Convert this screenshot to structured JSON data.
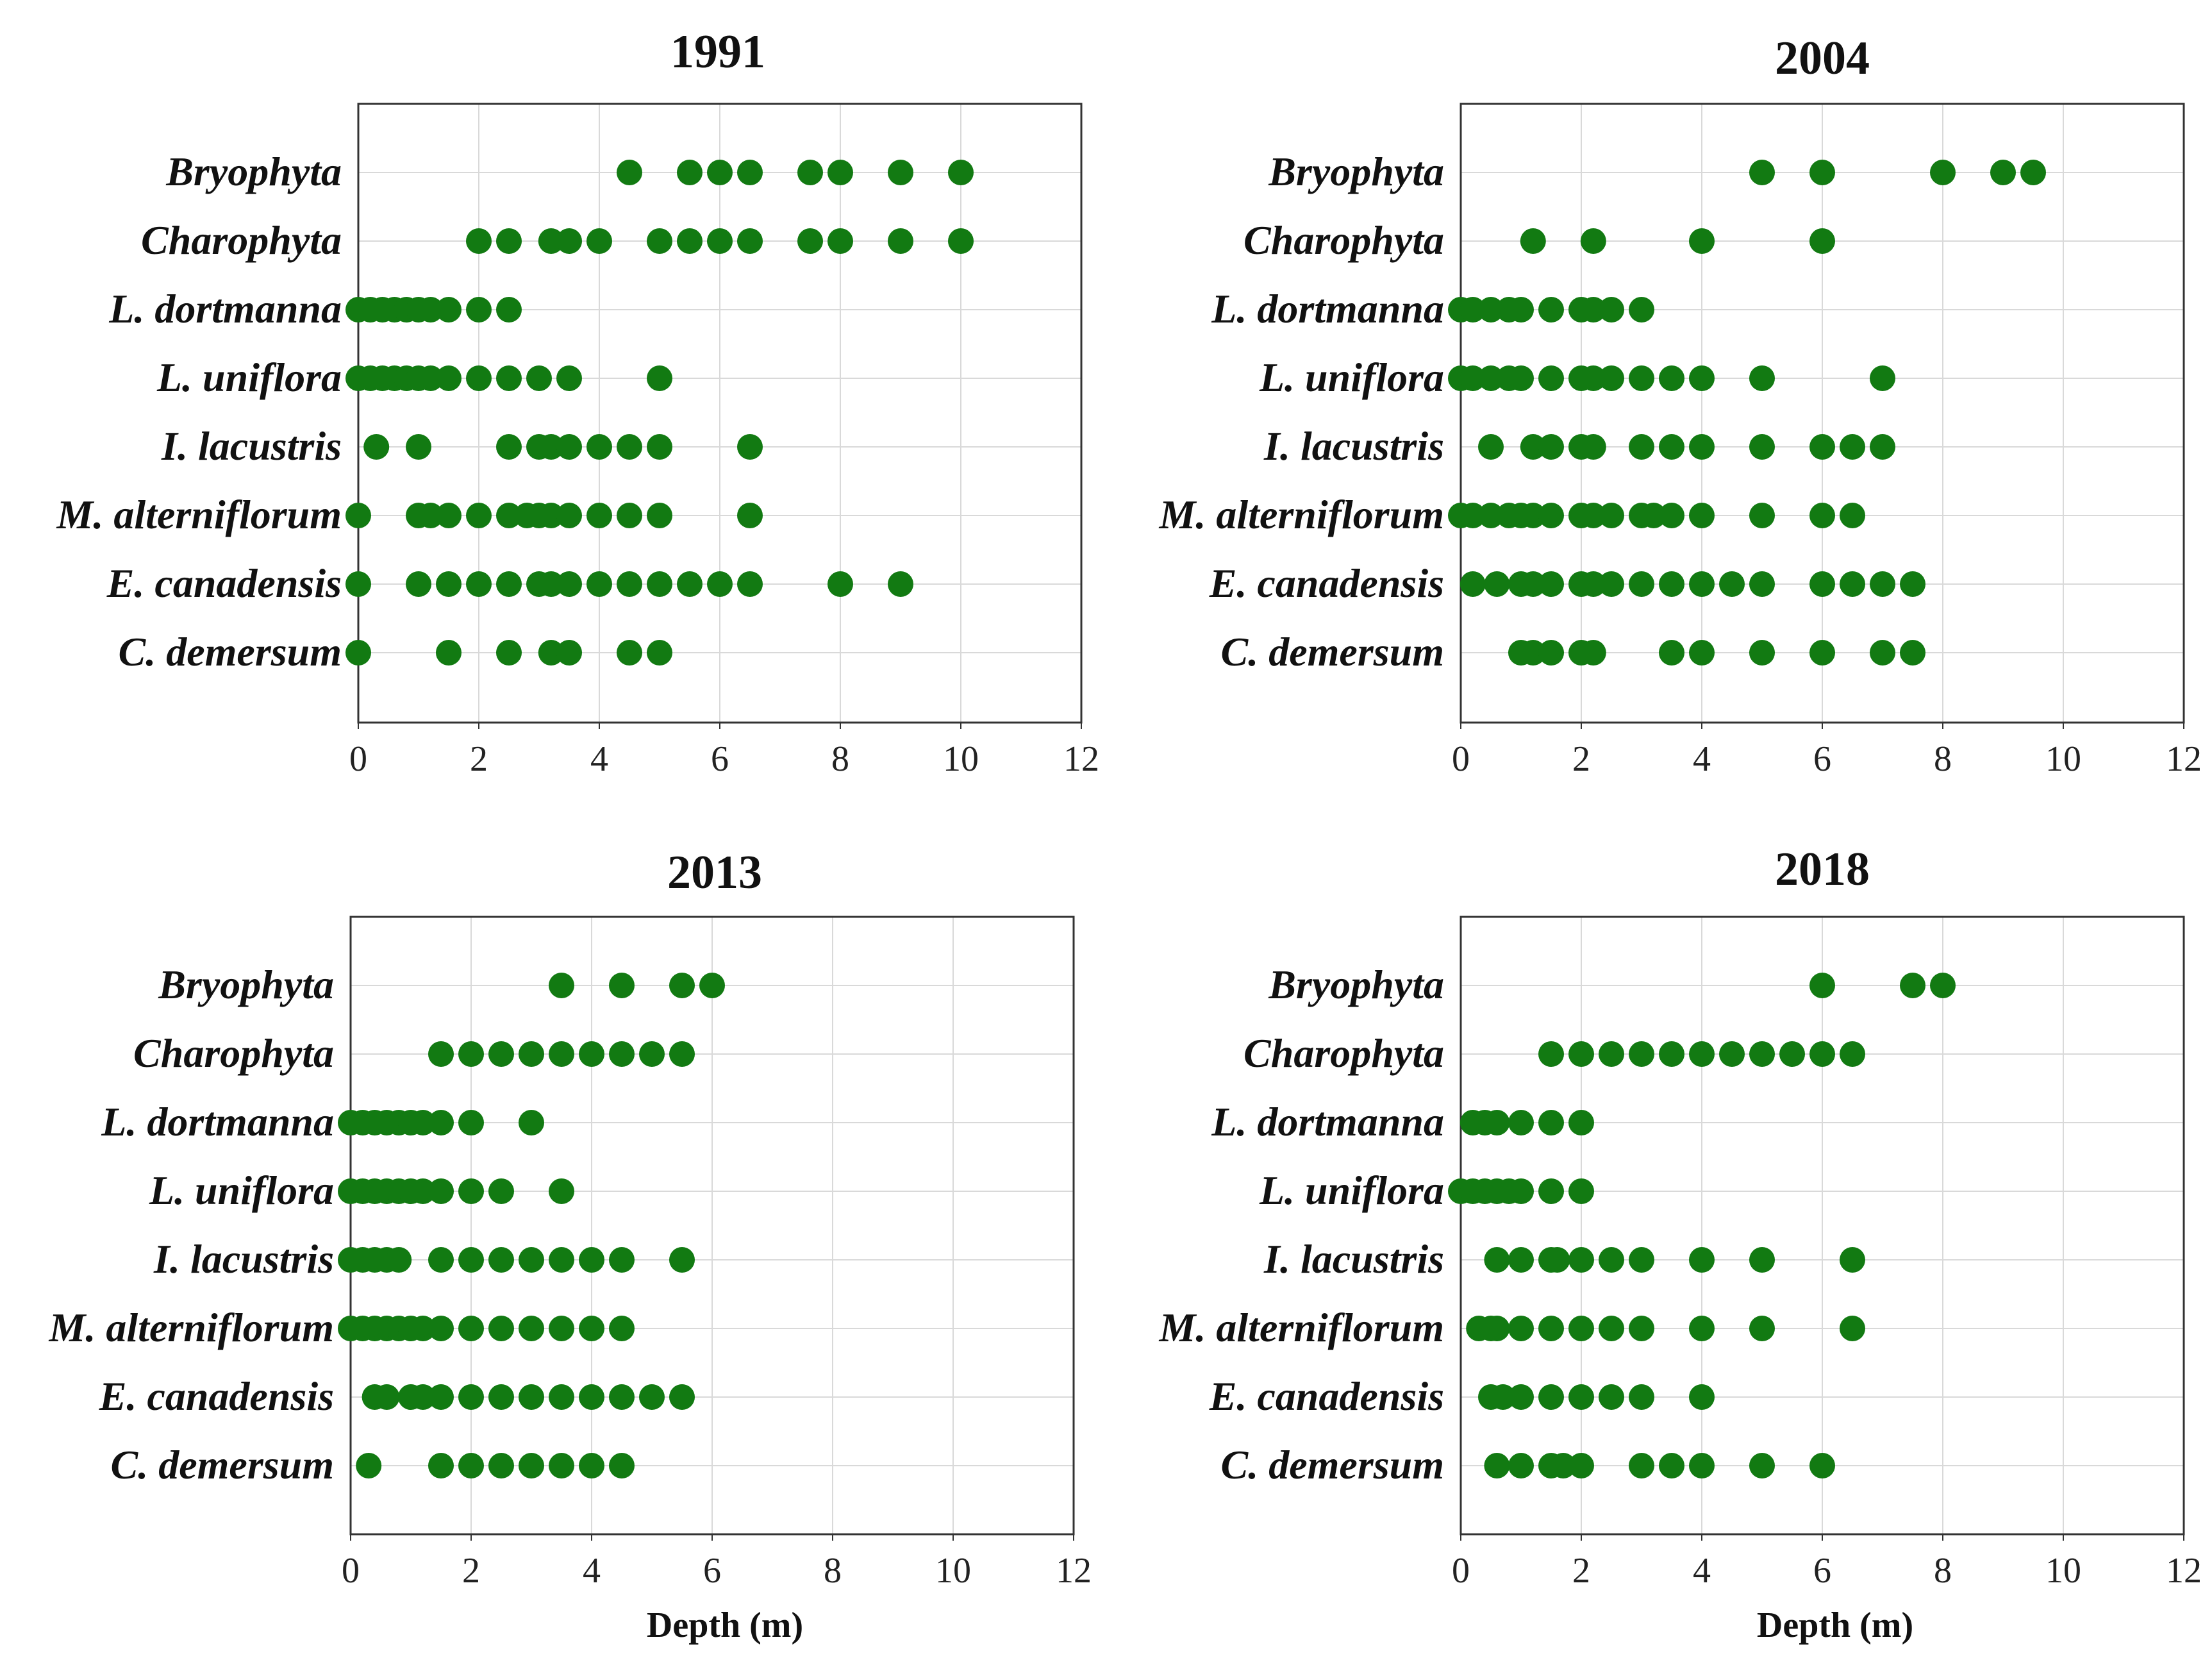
{
  "figure": {
    "colors": {
      "point": "#127a12",
      "grid": "#d9d9d9",
      "frame": "#333333"
    }
  },
  "chart_data": [
    {
      "type": "scatter",
      "title": "1991",
      "xlabel": "",
      "xlim": [
        0,
        12
      ],
      "xticks": [
        0,
        2,
        4,
        6,
        8,
        10,
        12
      ],
      "xtick_labels": [
        "0",
        "2",
        "4",
        "6",
        "8",
        "10",
        "12"
      ],
      "categories": [
        "Bryophyta",
        "Charophyta",
        "L. dortmanna",
        "L. uniflora",
        "I. lacustris",
        "M. alterniflorum",
        "E. canadensis",
        "C. demersum"
      ],
      "series": [
        {
          "name": "Bryophyta",
          "x": [
            4.5,
            5.5,
            6,
            6.5,
            7.5,
            8,
            9,
            10
          ]
        },
        {
          "name": "Charophyta",
          "x": [
            2,
            2.5,
            3.2,
            3.5,
            4,
            5,
            5.5,
            6,
            6.5,
            7.5,
            8,
            9,
            10
          ]
        },
        {
          "name": "L. dortmanna",
          "x": [
            0,
            0.2,
            0.4,
            0.6,
            0.8,
            1,
            1.2,
            1.5,
            2,
            2.5
          ]
        },
        {
          "name": "L. uniflora",
          "x": [
            0,
            0.2,
            0.4,
            0.6,
            0.8,
            1,
            1.2,
            1.5,
            2,
            2.5,
            3,
            3.5,
            5
          ]
        },
        {
          "name": "I. lacustris",
          "x": [
            0.3,
            1,
            2.5,
            3,
            3.2,
            3.5,
            4,
            4.5,
            5,
            6.5
          ]
        },
        {
          "name": "M. alterniflorum",
          "x": [
            0,
            1,
            1.2,
            1.5,
            2,
            2.5,
            2.8,
            3,
            3.2,
            3.5,
            4,
            4.5,
            5,
            6.5
          ]
        },
        {
          "name": "E. canadensis",
          "x": [
            0,
            1,
            1.5,
            2,
            2.5,
            3,
            3.2,
            3.5,
            4,
            4.5,
            5,
            5.5,
            6,
            6.5,
            8,
            9
          ]
        },
        {
          "name": "C. demersum",
          "x": [
            0,
            1.5,
            2.5,
            3.2,
            3.5,
            4.5,
            5
          ]
        }
      ]
    },
    {
      "type": "scatter",
      "title": "2004",
      "xlabel": "",
      "xlim": [
        0,
        12
      ],
      "xticks": [
        0,
        2,
        4,
        6,
        8,
        10,
        12
      ],
      "xtick_labels": [
        "0",
        "2",
        "4",
        "6",
        "8",
        "10",
        "12"
      ],
      "categories": [
        "Bryophyta",
        "Charophyta",
        "L. dortmanna",
        "L. uniflora",
        "I. lacustris",
        "M. alterniflorum",
        "E. canadensis",
        "C. demersum"
      ],
      "series": [
        {
          "name": "Bryophyta",
          "x": [
            5,
            6,
            8,
            9,
            9.5
          ]
        },
        {
          "name": "Charophyta",
          "x": [
            1.2,
            2.2,
            4,
            6
          ]
        },
        {
          "name": "L. dortmanna",
          "x": [
            0,
            0.2,
            0.5,
            0.8,
            1,
            1.5,
            2,
            2.2,
            2.5,
            3
          ]
        },
        {
          "name": "L. uniflora",
          "x": [
            0,
            0.2,
            0.5,
            0.8,
            1,
            1.5,
            2,
            2.2,
            2.5,
            3,
            3.5,
            4,
            5,
            7
          ]
        },
        {
          "name": "I. lacustris",
          "x": [
            0.5,
            1.2,
            1.5,
            2,
            2.2,
            3,
            3.5,
            4,
            5,
            6,
            6.5,
            7
          ]
        },
        {
          "name": "M. alterniflorum",
          "x": [
            0,
            0.2,
            0.5,
            0.8,
            1,
            1.2,
            1.5,
            2,
            2.2,
            2.5,
            3,
            3.2,
            3.5,
            4,
            5,
            6,
            6.5
          ]
        },
        {
          "name": "E. canadensis",
          "x": [
            0.2,
            0.6,
            1,
            1.2,
            1.5,
            2,
            2.2,
            2.5,
            3,
            3.5,
            4,
            4.5,
            5,
            6,
            6.5,
            7,
            7.5
          ]
        },
        {
          "name": "C. demersum",
          "x": [
            1,
            1.2,
            1.5,
            2,
            2.2,
            3.5,
            4,
            5,
            6,
            7,
            7.5
          ]
        }
      ]
    },
    {
      "type": "scatter",
      "title": "2013",
      "xlabel": "Depth (m)",
      "xlim": [
        0,
        12
      ],
      "xticks": [
        0,
        2,
        4,
        6,
        8,
        10,
        12
      ],
      "xtick_labels": [
        "0",
        "2",
        "4",
        "6",
        "8",
        "10",
        "12"
      ],
      "categories": [
        "Bryophyta",
        "Charophyta",
        "L. dortmanna",
        "L. uniflora",
        "I. lacustris",
        "M. alterniflorum",
        "E. canadensis",
        "C. demersum"
      ],
      "series": [
        {
          "name": "Bryophyta",
          "x": [
            3.5,
            4.5,
            5.5,
            6
          ]
        },
        {
          "name": "Charophyta",
          "x": [
            1.5,
            2,
            2.5,
            3,
            3.5,
            4,
            4.5,
            5,
            5.5
          ]
        },
        {
          "name": "L. dortmanna",
          "x": [
            0,
            0.2,
            0.4,
            0.6,
            0.8,
            1,
            1.2,
            1.5,
            2,
            3
          ]
        },
        {
          "name": "L. uniflora",
          "x": [
            0,
            0.2,
            0.4,
            0.6,
            0.8,
            1,
            1.2,
            1.5,
            2,
            2.5,
            3.5
          ]
        },
        {
          "name": "I. lacustris",
          "x": [
            0,
            0.2,
            0.4,
            0.6,
            0.8,
            1.5,
            2,
            2.5,
            3,
            3.5,
            4,
            4.5,
            5.5
          ]
        },
        {
          "name": "M. alterniflorum",
          "x": [
            0,
            0.2,
            0.4,
            0.6,
            0.8,
            1,
            1.2,
            1.5,
            2,
            2.5,
            3,
            3.5,
            4,
            4.5
          ]
        },
        {
          "name": "E. canadensis",
          "x": [
            0.4,
            0.6,
            1,
            1.2,
            1.5,
            2,
            2.5,
            3,
            3.5,
            4,
            4.5,
            5,
            5.5
          ]
        },
        {
          "name": "C. demersum",
          "x": [
            0.3,
            1.5,
            2,
            2.5,
            3,
            3.5,
            4,
            4.5
          ]
        }
      ]
    },
    {
      "type": "scatter",
      "title": "2018",
      "xlabel": "Depth (m)",
      "xlim": [
        0,
        12
      ],
      "xticks": [
        0,
        2,
        4,
        6,
        8,
        10,
        12
      ],
      "xtick_labels": [
        "0",
        "2",
        "4",
        "6",
        "8",
        "10",
        "12"
      ],
      "categories": [
        "Bryophyta",
        "Charophyta",
        "L. dortmanna",
        "L. uniflora",
        "I. lacustris",
        "M. alterniflorum",
        "E. canadensis",
        "C. demersum"
      ],
      "series": [
        {
          "name": "Bryophyta",
          "x": [
            6,
            7.5,
            8
          ]
        },
        {
          "name": "Charophyta",
          "x": [
            1.5,
            2,
            2.5,
            3,
            3.5,
            4,
            4.5,
            5,
            5.5,
            6,
            6.5
          ]
        },
        {
          "name": "L. dortmanna",
          "x": [
            0.2,
            0.4,
            0.6,
            1,
            1.5,
            2
          ]
        },
        {
          "name": "L. uniflora",
          "x": [
            0,
            0.2,
            0.4,
            0.6,
            0.8,
            1,
            1.5,
            2
          ]
        },
        {
          "name": "I. lacustris",
          "x": [
            0.6,
            1,
            1.5,
            1.6,
            2,
            2.5,
            3,
            4,
            5,
            6.5
          ]
        },
        {
          "name": "M. alterniflorum",
          "x": [
            0.3,
            0.5,
            0.6,
            1,
            1.5,
            2,
            2.5,
            3,
            4,
            5,
            6.5
          ]
        },
        {
          "name": "E. canadensis",
          "x": [
            0.5,
            0.7,
            1,
            1.5,
            2,
            2.5,
            3,
            4
          ]
        },
        {
          "name": "C. demersum",
          "x": [
            0.6,
            1,
            1.5,
            1.7,
            2,
            3,
            3.5,
            4,
            5,
            6
          ]
        }
      ]
    }
  ]
}
